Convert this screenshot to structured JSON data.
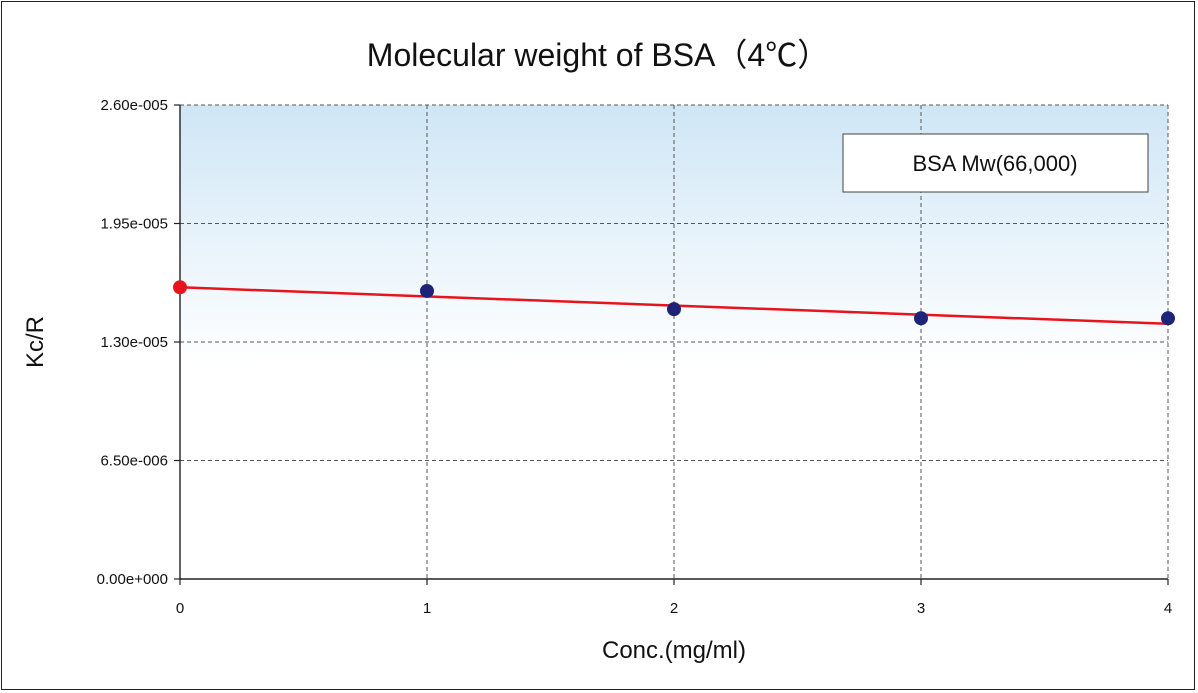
{
  "chart_data": {
    "type": "scatter",
    "title": "Molecular weight of BSA（4℃）",
    "xlabel": "Conc.(mg/ml)",
    "ylabel": "Kc/R",
    "xlim": [
      0,
      4
    ],
    "ylim": [
      0,
      2.6e-05
    ],
    "x_ticks": [
      "0",
      "1",
      "2",
      "3",
      "4"
    ],
    "x_tick_values": [
      0,
      1,
      2,
      3,
      4
    ],
    "y_ticks": [
      "0.00e+000",
      "6.50e-006",
      "1.30e-005",
      "1.95e-005",
      "2.60e-005"
    ],
    "y_tick_values": [
      0,
      6.5e-06,
      1.3e-05,
      1.95e-05,
      2.6e-05
    ],
    "grid": true,
    "legend_placement": "top-right",
    "legend_text": "BSA Mw(66,000)",
    "series": [
      {
        "type": "scatter",
        "color": "#1e237a",
        "x": [
          1,
          2,
          3,
          4
        ],
        "y": [
          1.58e-05,
          1.48e-05,
          1.43e-05,
          1.43e-05
        ]
      },
      {
        "type": "intercept",
        "color": "#e8141c",
        "x": [
          0
        ],
        "y": [
          1.6e-05
        ]
      },
      {
        "type": "line",
        "color": "#e8141c",
        "x": [
          0,
          4
        ],
        "y": [
          1.6e-05,
          1.4e-05
        ]
      }
    ],
    "plot_background": {
      "top_color": "#cfe6f6",
      "bottom_color": "#ffffff"
    }
  }
}
